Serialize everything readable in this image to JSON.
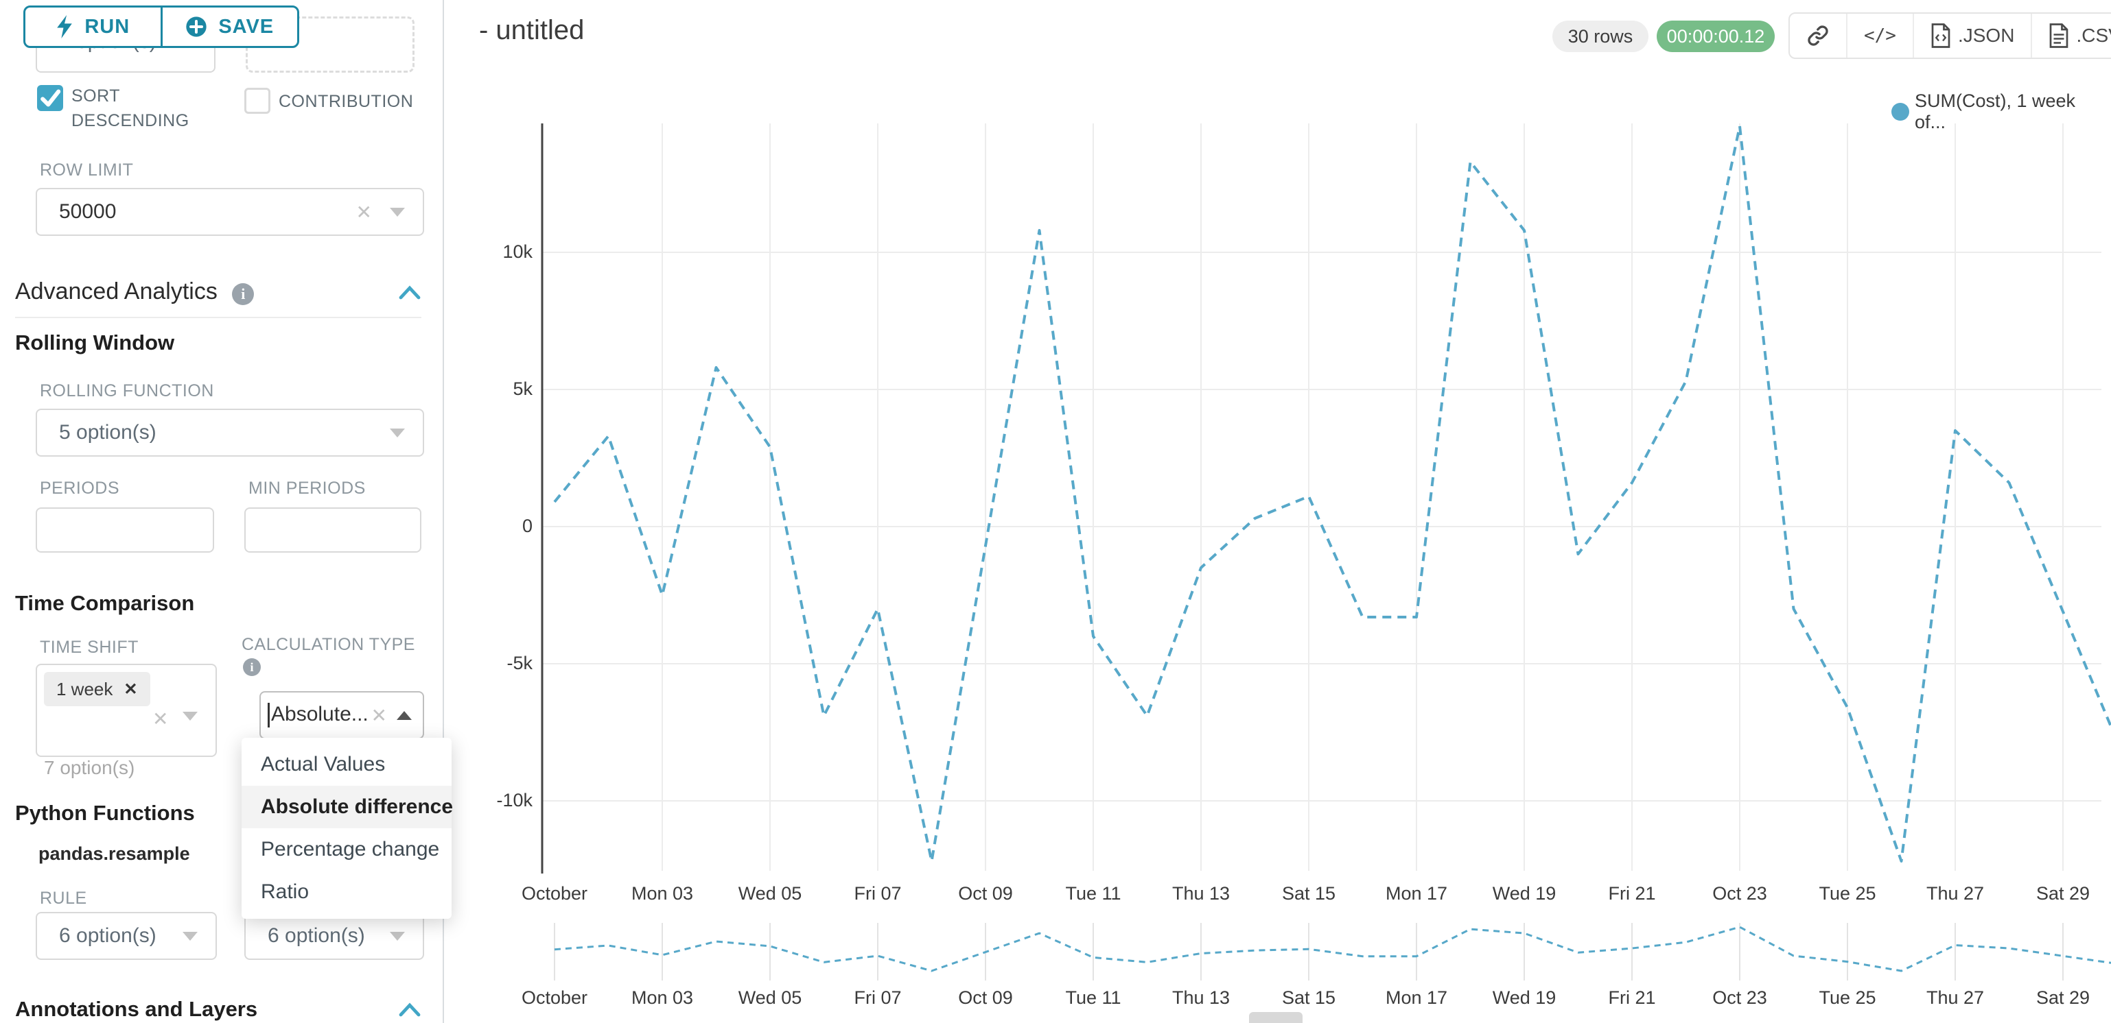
{
  "colors": {
    "accent_teal": "#1b87a3",
    "checkbox_teal": "#41a6c6",
    "chevron_blue": "#41a6c6",
    "line_blue": "#57a8c9",
    "timer_green": "#77bd88"
  },
  "toolbar": {
    "run_label": "RUN",
    "save_label": "SAVE"
  },
  "sidebar": {
    "partial_select_value": "7 option(s)",
    "sort_descending_label": "SORT DESCENDING",
    "contribution_label": "CONTRIBUTION",
    "row_limit_label": "ROW LIMIT",
    "row_limit_value": "50000",
    "advanced_analytics_title": "Advanced Analytics",
    "rolling_window": {
      "title": "Rolling Window",
      "rolling_function_label": "ROLLING FUNCTION",
      "rolling_function_value": "5 option(s)",
      "periods_label": "PERIODS",
      "min_periods_label": "MIN PERIODS"
    },
    "time_comparison": {
      "title": "Time Comparison",
      "time_shift_label": "TIME SHIFT",
      "time_shift_tag": "1 week",
      "time_shift_hint": "7 option(s)",
      "calculation_type_label": "CALCULATION TYPE",
      "calculation_value": "Absolute...",
      "dropdown_options": [
        "Actual Values",
        "Absolute difference",
        "Percentage change",
        "Ratio"
      ],
      "dropdown_selected": "Absolute difference"
    },
    "python_functions": {
      "title": "Python Functions",
      "subtitle": "pandas.resample",
      "rule_label": "RULE",
      "rule_value": "6 option(s)",
      "resample_method_value": "6 option(s)"
    },
    "annotations_title": "Annotations and Layers"
  },
  "header": {
    "title": "- untitled",
    "rows_badge": "30 rows",
    "timer_badge": "00:00:00.12",
    "json_label": ".JSON",
    "csv_label": ".CSV"
  },
  "legend_label": "SUM(Cost), 1 week of...",
  "chart_data": {
    "type": "line",
    "title": "",
    "xlabel": "",
    "ylabel": "",
    "grid": true,
    "legend_position": "top-right",
    "line_style": "dashed",
    "has_mini_chart": true,
    "ylim": [
      -12500,
      14700
    ],
    "x": [
      "Oct 01",
      "Oct 02",
      "Oct 03",
      "Oct 04",
      "Oct 05",
      "Oct 06",
      "Oct 07",
      "Oct 08",
      "Oct 09",
      "Oct 10",
      "Oct 11",
      "Oct 12",
      "Oct 13",
      "Oct 14",
      "Oct 15",
      "Oct 16",
      "Oct 17",
      "Oct 18",
      "Oct 19",
      "Oct 20",
      "Oct 21",
      "Oct 22",
      "Oct 23",
      "Oct 24",
      "Oct 25",
      "Oct 26",
      "Oct 27",
      "Oct 28",
      "Oct 29",
      "Oct 30"
    ],
    "x_tick_labels": [
      "October",
      "Mon 03",
      "Wed 05",
      "Fri 07",
      "Oct 09",
      "Tue 11",
      "Thu 13",
      "Sat 15",
      "Mon 17",
      "Wed 19",
      "Fri 21",
      "Oct 23",
      "Tue 25",
      "Thu 27",
      "Sat 29"
    ],
    "y_ticks": [
      {
        "label": "10k",
        "value": 10000
      },
      {
        "label": "5k",
        "value": 5000
      },
      {
        "label": "0",
        "value": 0
      },
      {
        "label": "-5k",
        "value": -5000
      },
      {
        "label": "-10k",
        "value": -10000
      }
    ],
    "series": [
      {
        "name": "SUM(Cost), 1 week of...",
        "color": "#57a8c9",
        "values": [
          900,
          3300,
          -2500,
          5800,
          2900,
          -6900,
          -3000,
          -12200,
          -700,
          10800,
          -4000,
          -6900,
          -1500,
          300,
          1100,
          -3300,
          -3300,
          13300,
          10800,
          -1000,
          1600,
          5300,
          14600,
          -3000,
          -6600,
          -12200,
          3500,
          1600,
          -3100,
          -7800
        ]
      }
    ]
  }
}
